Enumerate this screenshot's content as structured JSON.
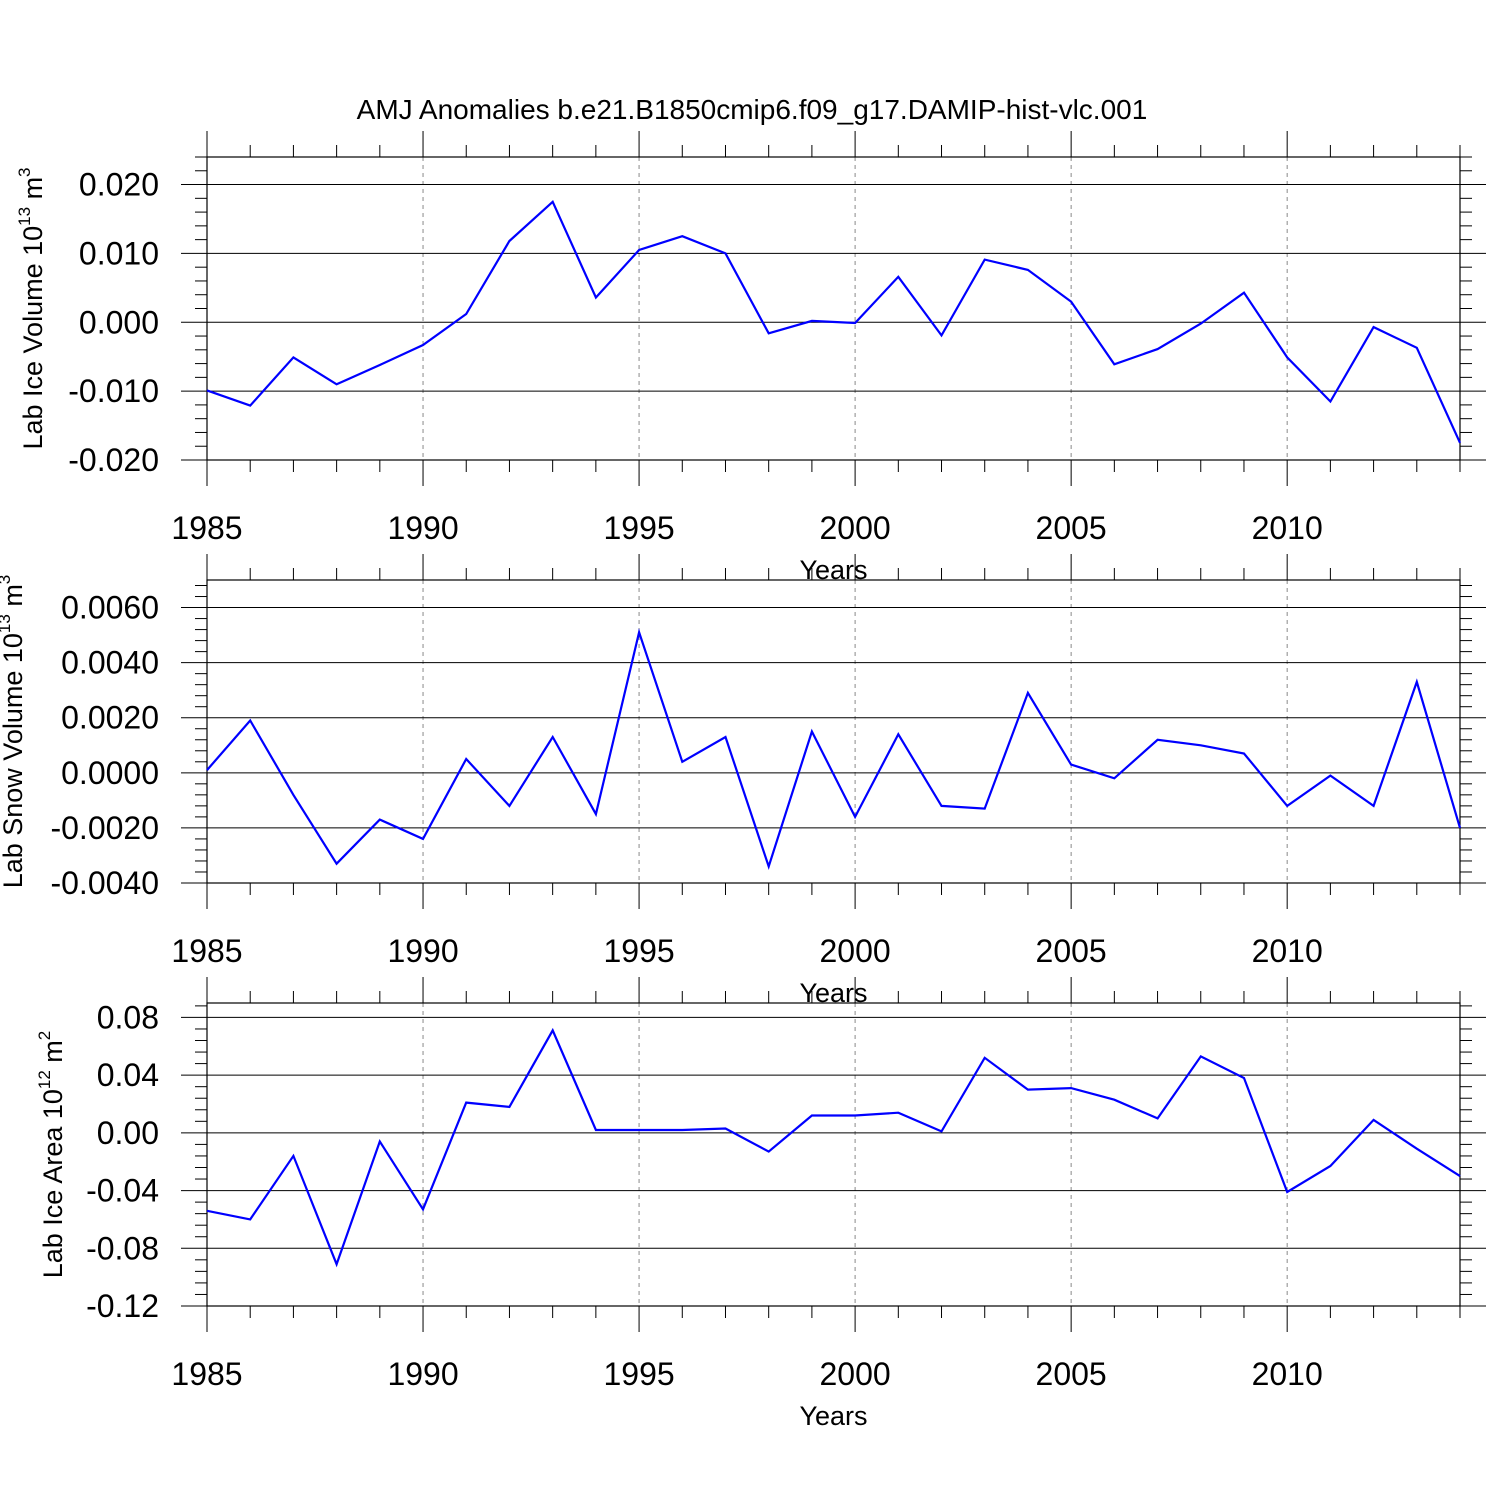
{
  "chart_data": {
    "title": "AMJ Anomalies b.e21.B1850cmip6.f09_g17.DAMIP-hist-vlc.001",
    "line_color": "#0000ff",
    "panels": [
      {
        "type": "line",
        "ylabel_main": "Lab Ice Volume 10",
        "ylabel_exp": "13",
        "ylabel_unit": " m",
        "ylabel_unit_exp": "3",
        "xlabel": "Years",
        "xlim": [
          1985,
          2014
        ],
        "ylim": [
          -0.02,
          0.024
        ],
        "x_ticks": [
          "1985",
          "1990",
          "1995",
          "2000",
          "2005",
          "2010"
        ],
        "y_ticks": [
          "0.020",
          "0.010",
          "0.000",
          "-0.010",
          "-0.020"
        ],
        "y_tick_values": [
          0.02,
          0.01,
          0.0,
          -0.01,
          -0.02
        ],
        "x": [
          1985,
          1986,
          1987,
          1988,
          1989,
          1990,
          1991,
          1992,
          1993,
          1994,
          1995,
          1996,
          1997,
          1998,
          1999,
          2000,
          2001,
          2002,
          2003,
          2004,
          2005,
          2006,
          2007,
          2008,
          2009,
          2010,
          2011,
          2012,
          2013,
          2014
        ],
        "values": [
          -0.0099,
          -0.0121,
          -0.0051,
          -0.009,
          -0.0062,
          -0.0033,
          0.0012,
          0.0118,
          0.0175,
          0.0036,
          0.0105,
          0.0125,
          0.01,
          -0.0016,
          0.0002,
          -0.0001,
          0.0066,
          -0.0019,
          0.0091,
          0.0076,
          0.003,
          -0.0061,
          -0.0039,
          -0.0002,
          0.0043,
          -0.0051,
          -0.0115,
          -0.0007,
          -0.0037,
          -0.0175
        ]
      },
      {
        "type": "line",
        "ylabel_main": "Lab Snow Volume 10",
        "ylabel_exp": "13",
        "ylabel_unit": " m",
        "ylabel_unit_exp": "3",
        "xlabel": "Years",
        "xlim": [
          1985,
          2014
        ],
        "ylim": [
          -0.004,
          0.007
        ],
        "x_ticks": [
          "1985",
          "1990",
          "1995",
          "2000",
          "2005",
          "2010"
        ],
        "y_ticks": [
          "0.0060",
          "0.0040",
          "0.0020",
          "0.0000",
          "-0.0020",
          "-0.0040"
        ],
        "y_tick_values": [
          0.006,
          0.004,
          0.002,
          0.0,
          -0.002,
          -0.004
        ],
        "x": [
          1985,
          1986,
          1987,
          1988,
          1989,
          1990,
          1991,
          1992,
          1993,
          1994,
          1995,
          1996,
          1997,
          1998,
          1999,
          2000,
          2001,
          2002,
          2003,
          2004,
          2005,
          2006,
          2007,
          2008,
          2009,
          2010,
          2011,
          2012,
          2013,
          2014
        ],
        "values": [
          0.0001,
          0.0019,
          -0.0008,
          -0.0033,
          -0.0017,
          -0.0024,
          0.0005,
          -0.0012,
          0.0013,
          -0.0015,
          0.0051,
          0.0004,
          0.0013,
          -0.0034,
          0.0015,
          -0.0016,
          0.0014,
          -0.0012,
          -0.0013,
          0.0029,
          0.0003,
          -0.0002,
          0.0012,
          0.001,
          0.0007,
          -0.0012,
          -0.0001,
          -0.0012,
          0.0033,
          -0.002
        ]
      },
      {
        "type": "line",
        "ylabel_main": "Lab Ice Area 10",
        "ylabel_exp": "12",
        "ylabel_unit": " m",
        "ylabel_unit_exp": "2",
        "xlabel": "Years",
        "xlim": [
          1985,
          2014
        ],
        "ylim": [
          -0.12,
          0.09
        ],
        "x_ticks": [
          "1985",
          "1990",
          "1995",
          "2000",
          "2005",
          "2010"
        ],
        "y_ticks": [
          "0.08",
          "0.04",
          "0.00",
          "-0.04",
          "-0.08",
          "-0.12"
        ],
        "y_tick_values": [
          0.08,
          0.04,
          0.0,
          -0.04,
          -0.08,
          -0.12
        ],
        "x": [
          1985,
          1986,
          1987,
          1988,
          1989,
          1990,
          1991,
          1992,
          1993,
          1994,
          1995,
          1996,
          1997,
          1998,
          1999,
          2000,
          2001,
          2002,
          2003,
          2004,
          2005,
          2006,
          2007,
          2008,
          2009,
          2010,
          2011,
          2012,
          2013,
          2014
        ],
        "values": [
          -0.054,
          -0.06,
          -0.016,
          -0.091,
          -0.006,
          -0.053,
          0.021,
          0.018,
          0.071,
          0.002,
          0.002,
          0.002,
          0.003,
          -0.013,
          0.012,
          0.012,
          0.014,
          0.001,
          0.052,
          0.03,
          0.031,
          0.023,
          0.01,
          0.053,
          0.038,
          -0.041,
          -0.023,
          0.009,
          -0.011,
          -0.03
        ]
      }
    ]
  }
}
